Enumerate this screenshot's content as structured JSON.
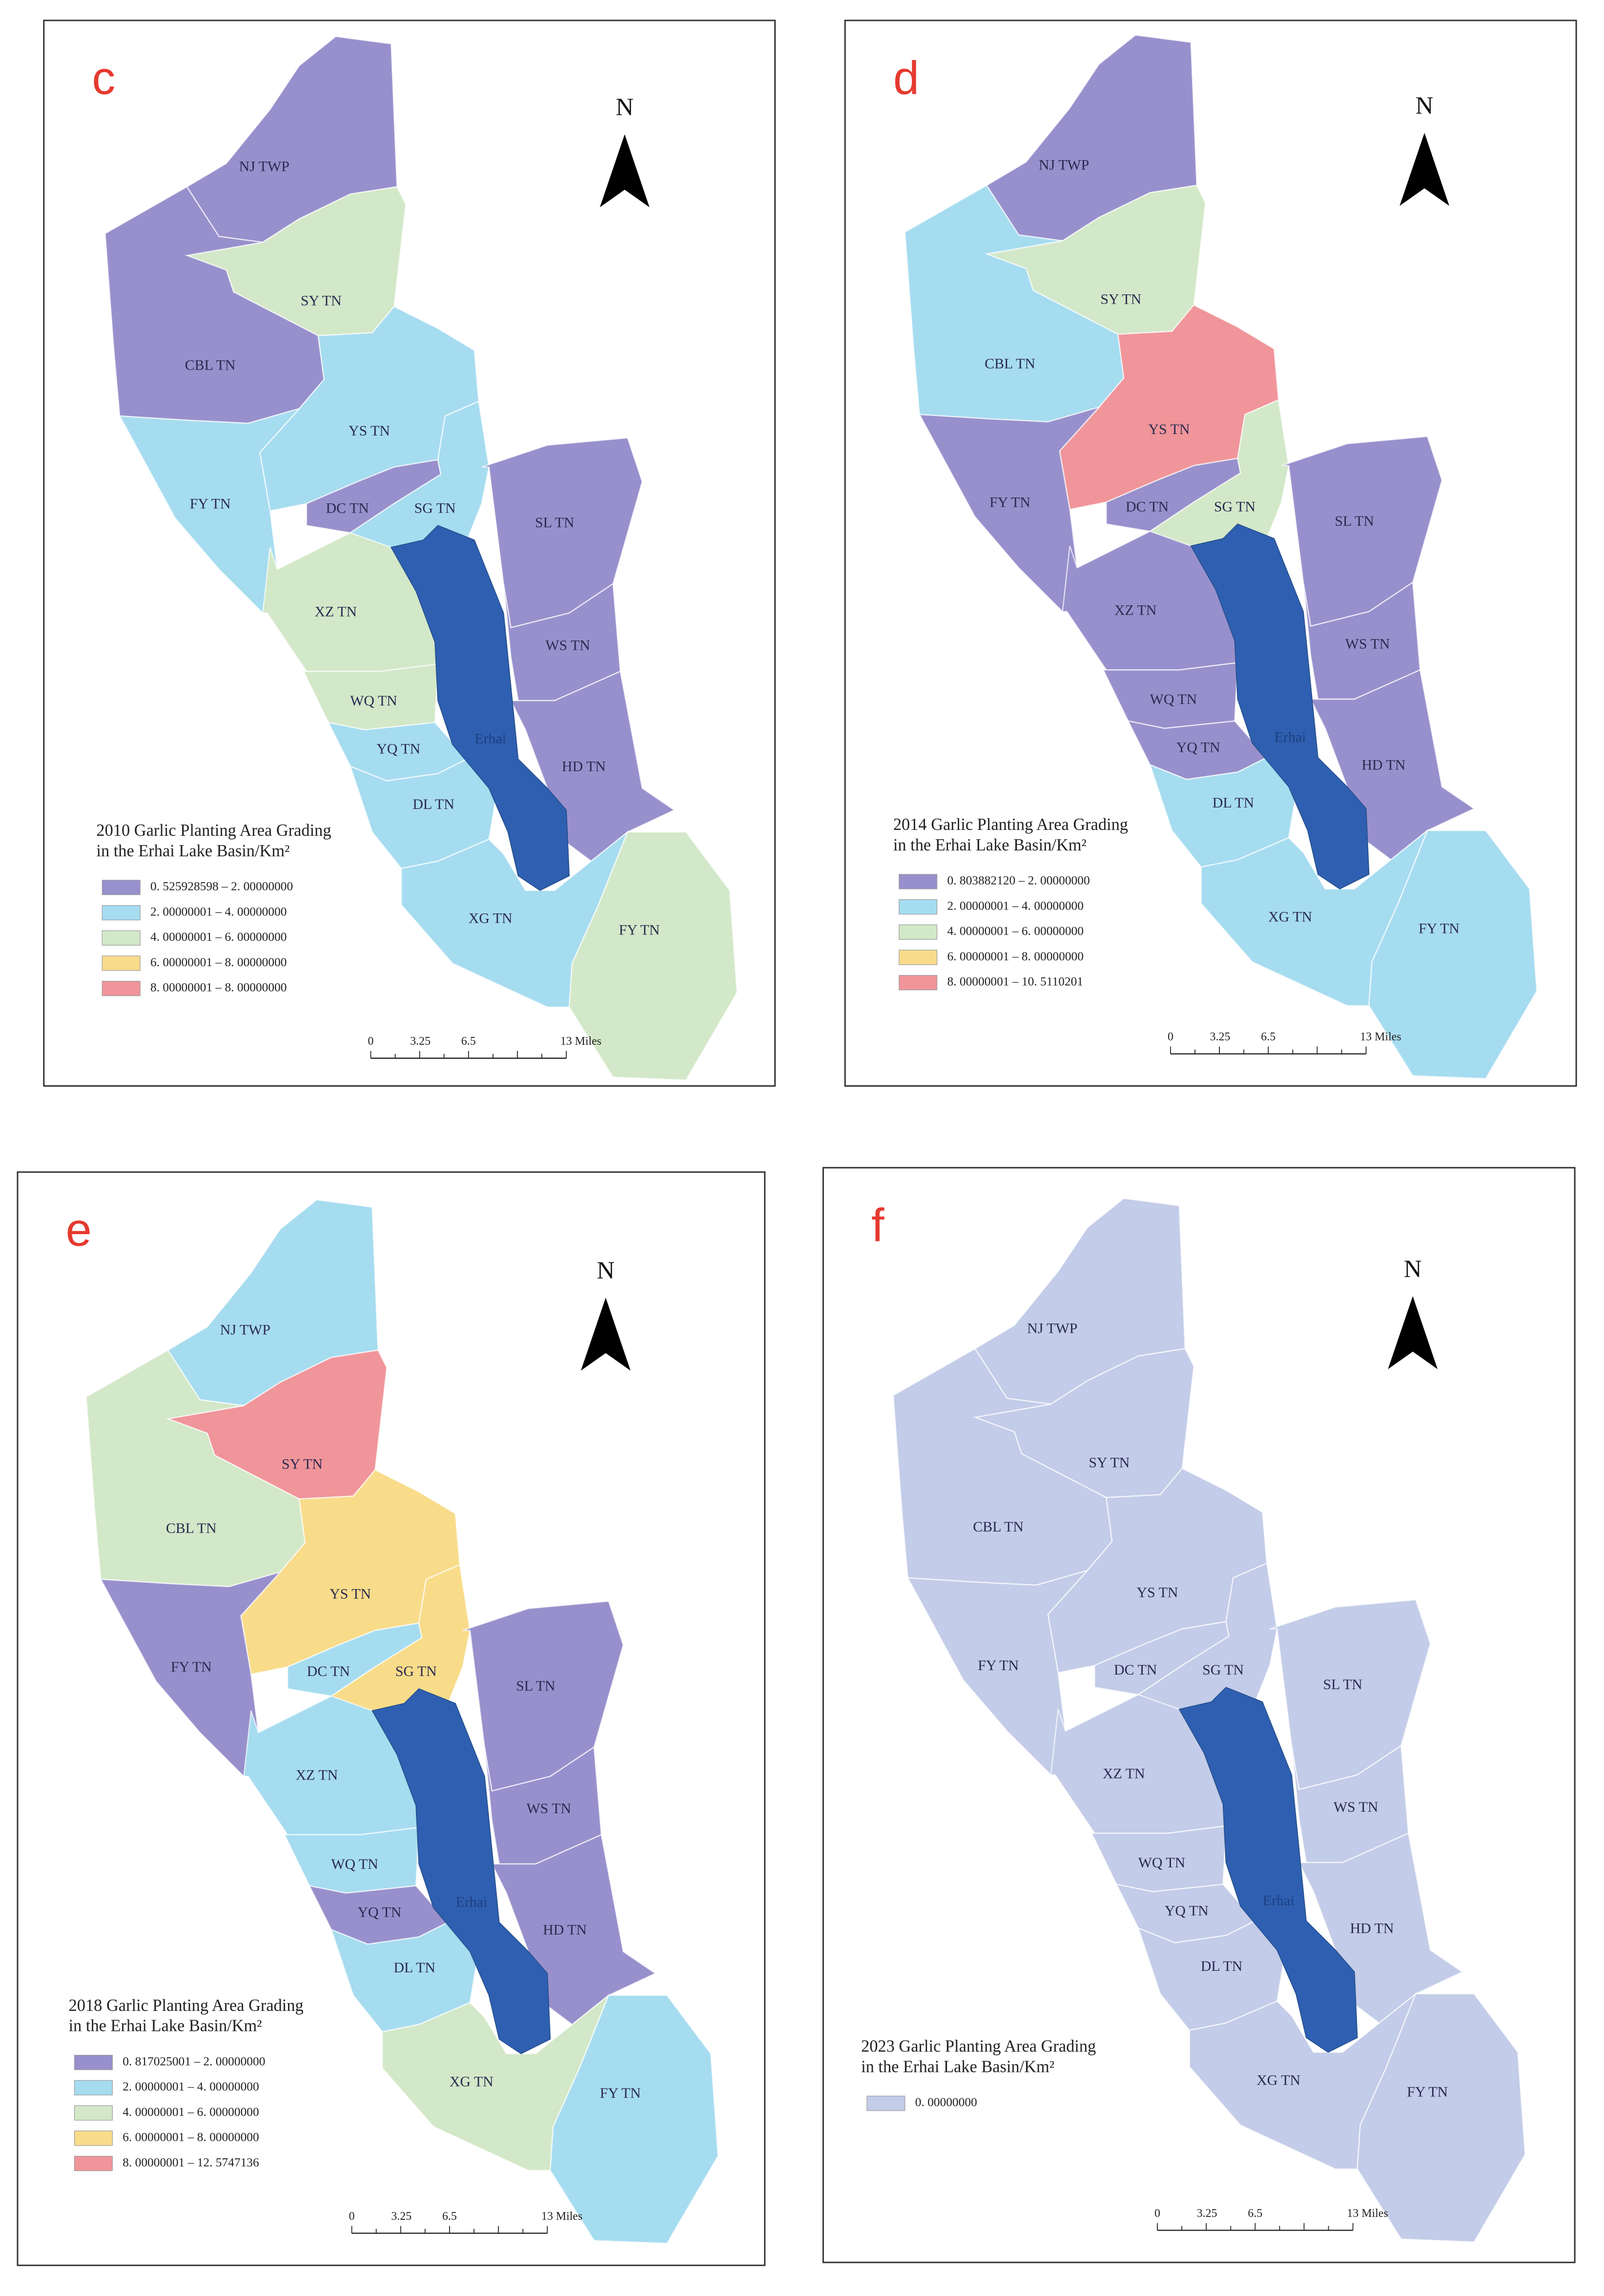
{
  "panels": [
    {
      "letter": "c",
      "north": "N",
      "title": [
        "2010 Garlic Planting Area Grading",
        "in the Erhai Lake Basin/Km²"
      ],
      "regions": [
        {
          "label": "NJ TWP",
          "color": "#9890cc"
        },
        {
          "label": "SY TN",
          "color": "#d3e8c8"
        },
        {
          "label": "CBL TN",
          "color": "#9890cc"
        },
        {
          "label": "YS TN",
          "color": "#a6dcf0"
        },
        {
          "label": "FY TN",
          "color": "#a6dcf0"
        },
        {
          "label": "DC TN",
          "color": "#9890cc"
        },
        {
          "label": "SG TN",
          "color": "#a6dcf0"
        },
        {
          "label": "SL TN",
          "color": "#9890cc"
        },
        {
          "label": "XZ TN",
          "color": "#d3e8c8"
        },
        {
          "label": "WS TN",
          "color": "#9890cc"
        },
        {
          "label": "WQ TN",
          "color": "#d3e8c8"
        },
        {
          "label": "YQ TN",
          "color": "#a6dcf0"
        },
        {
          "label": "HD TN",
          "color": "#9890cc"
        },
        {
          "label": "DL TN",
          "color": "#a6dcf0"
        },
        {
          "label": "XG TN",
          "color": "#a6dcf0"
        },
        {
          "label": "FY TN",
          "color": "#d3e8c8"
        }
      ],
      "lake": {
        "label": "Erhai",
        "color": "#2f5fb0"
      },
      "legend": [
        {
          "label": "0. 525928598 – 2. 00000000",
          "color": "#9890cc"
        },
        {
          "label": "2. 00000001 – 4. 00000000",
          "color": "#a6dcf0"
        },
        {
          "label": "4. 00000001 – 6. 00000000",
          "color": "#d3e8c8"
        },
        {
          "label": "6. 00000001 – 8. 00000000",
          "color": "#f8dc8a"
        },
        {
          "label": "8. 00000001 – 8. 00000000",
          "color": "#f0959a"
        }
      ],
      "scale": [
        "0",
        "3.25",
        "6.5",
        "13 Miles"
      ]
    },
    {
      "letter": "d",
      "north": "N",
      "title": [
        "2014 Garlic Planting Area Grading",
        "in the Erhai Lake Basin/Km²"
      ],
      "regions": [
        {
          "label": "NJ TWP",
          "color": "#9890cc"
        },
        {
          "label": "SY TN",
          "color": "#d3e8c8"
        },
        {
          "label": "CBL TN",
          "color": "#a6dcf0"
        },
        {
          "label": "YS TN",
          "color": "#f0959a"
        },
        {
          "label": "FY TN",
          "color": "#9890cc"
        },
        {
          "label": "DC TN",
          "color": "#9890cc"
        },
        {
          "label": "SG TN",
          "color": "#d3e8c8"
        },
        {
          "label": "SL TN",
          "color": "#9890cc"
        },
        {
          "label": "XZ TN",
          "color": "#9890cc"
        },
        {
          "label": "WS TN",
          "color": "#9890cc"
        },
        {
          "label": "WQ TN",
          "color": "#9890cc"
        },
        {
          "label": "YQ TN",
          "color": "#9890cc"
        },
        {
          "label": "HD TN",
          "color": "#9890cc"
        },
        {
          "label": "DL TN",
          "color": "#a6dcf0"
        },
        {
          "label": "XG TN",
          "color": "#a6dcf0"
        },
        {
          "label": "FY TN",
          "color": "#a6dcf0"
        }
      ],
      "lake": {
        "label": "Erhai",
        "color": "#2f5fb0"
      },
      "legend": [
        {
          "label": "0. 803882120 – 2. 00000000",
          "color": "#9890cc"
        },
        {
          "label": "2. 00000001 – 4. 00000000",
          "color": "#a6dcf0"
        },
        {
          "label": "4. 00000001 – 6. 00000000",
          "color": "#d3e8c8"
        },
        {
          "label": "6. 00000001 – 8. 00000000",
          "color": "#f8dc8a"
        },
        {
          "label": "8. 00000001 – 10. 5110201",
          "color": "#f0959a"
        }
      ],
      "scale": [
        "0",
        "3.25",
        "6.5",
        "13 Miles"
      ]
    },
    {
      "letter": "e",
      "north": "N",
      "title": [
        "2018 Garlic Planting Area Grading",
        "in the Erhai Lake Basin/Km²"
      ],
      "regions": [
        {
          "label": "NJ TWP",
          "color": "#a6dcf0"
        },
        {
          "label": "SY TN",
          "color": "#f0959a"
        },
        {
          "label": "CBL TN",
          "color": "#d3e8c8"
        },
        {
          "label": "YS TN",
          "color": "#f8dc8a"
        },
        {
          "label": "FY TN",
          "color": "#9890cc"
        },
        {
          "label": "DC TN",
          "color": "#a6dcf0"
        },
        {
          "label": "SG TN",
          "color": "#f8dc8a"
        },
        {
          "label": "SL TN",
          "color": "#9890cc"
        },
        {
          "label": "XZ TN",
          "color": "#a6dcf0"
        },
        {
          "label": "WS TN",
          "color": "#9890cc"
        },
        {
          "label": "WQ TN",
          "color": "#a6dcf0"
        },
        {
          "label": "YQ TN",
          "color": "#9890cc"
        },
        {
          "label": "HD TN",
          "color": "#9890cc"
        },
        {
          "label": "DL TN",
          "color": "#a6dcf0"
        },
        {
          "label": "XG TN",
          "color": "#d3e8c8"
        },
        {
          "label": "FY TN",
          "color": "#a6dcf0"
        }
      ],
      "lake": {
        "label": "Erhai",
        "color": "#2f5fb0"
      },
      "legend": [
        {
          "label": "0. 817025001 – 2. 00000000",
          "color": "#9890cc"
        },
        {
          "label": "2. 00000001 – 4. 00000000",
          "color": "#a6dcf0"
        },
        {
          "label": "4. 00000001 – 6. 00000000",
          "color": "#d3e8c8"
        },
        {
          "label": "6. 00000001 – 8. 00000000",
          "color": "#f8dc8a"
        },
        {
          "label": "8. 00000001 – 12. 5747136",
          "color": "#f0959a"
        }
      ],
      "scale": [
        "0",
        "3.25",
        "6.5",
        "13 Miles"
      ]
    },
    {
      "letter": "f",
      "north": "N",
      "title": [
        "2023 Garlic Planting Area Grading",
        "in the Erhai Lake Basin/Km²"
      ],
      "regions": [
        {
          "label": "NJ TWP",
          "color": "#c3cce8"
        },
        {
          "label": "SY TN",
          "color": "#c3cce8"
        },
        {
          "label": "CBL TN",
          "color": "#c3cce8"
        },
        {
          "label": "YS TN",
          "color": "#c3cce8"
        },
        {
          "label": "FY TN",
          "color": "#c3cce8"
        },
        {
          "label": "DC TN",
          "color": "#c3cce8"
        },
        {
          "label": "SG TN",
          "color": "#c3cce8"
        },
        {
          "label": "SL TN",
          "color": "#c3cce8"
        },
        {
          "label": "XZ TN",
          "color": "#c3cce8"
        },
        {
          "label": "WS TN",
          "color": "#c3cce8"
        },
        {
          "label": "WQ TN",
          "color": "#c3cce8"
        },
        {
          "label": "YQ TN",
          "color": "#c3cce8"
        },
        {
          "label": "HD TN",
          "color": "#c3cce8"
        },
        {
          "label": "DL TN",
          "color": "#c3cce8"
        },
        {
          "label": "XG TN",
          "color": "#c3cce8"
        },
        {
          "label": "FY TN",
          "color": "#c3cce8"
        }
      ],
      "lake": {
        "label": "Erhai",
        "color": "#2f5fb0"
      },
      "legend": [
        {
          "label": "0. 00000000",
          "color": "#c3cce8"
        }
      ],
      "scale": [
        "0",
        "3.25",
        "6.5",
        "13 Miles"
      ]
    }
  ]
}
